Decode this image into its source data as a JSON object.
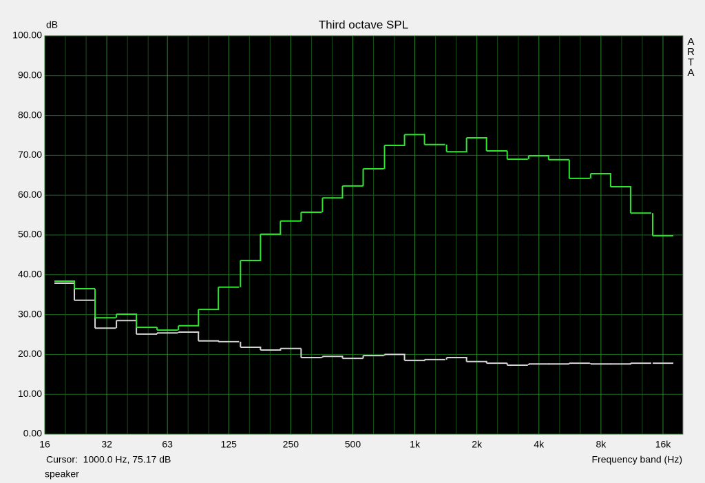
{
  "chart_data": {
    "type": "step",
    "title": "Third octave SPL",
    "y_label": "dB",
    "x_label": "Frequency band (Hz)",
    "cursor_text": "Cursor:  1000.0 Hz, 75.17 dB",
    "annotation": "speaker",
    "watermark": "ARTA",
    "log_x": true,
    "grid": true,
    "x": [
      20,
      25,
      31.5,
      40,
      50,
      63,
      80,
      100,
      125,
      160,
      200,
      250,
      315,
      400,
      500,
      630,
      800,
      1000,
      1250,
      1600,
      2000,
      2500,
      3150,
      4000,
      5000,
      6300,
      8000,
      10000,
      12500,
      16000
    ],
    "series": [
      {
        "color": "#2ee62e",
        "values": [
          38.4,
          36.5,
          29.2,
          30.1,
          26.8,
          26.1,
          27.2,
          31.3,
          36.9,
          43.6,
          50.2,
          53.5,
          55.7,
          59.3,
          62.3,
          66.6,
          72.5,
          75.2,
          72.7,
          70.9,
          74.4,
          71.1,
          69.0,
          69.9,
          68.9,
          64.2,
          65.4,
          62.1,
          55.5,
          49.8
        ]
      },
      {
        "color": "#d4d4d4",
        "values": [
          37.9,
          33.6,
          26.6,
          28.5,
          25.1,
          25.4,
          25.6,
          23.4,
          23.2,
          21.8,
          21.1,
          21.5,
          19.2,
          19.5,
          19.0,
          19.7,
          20.0,
          18.5,
          18.7,
          19.2,
          18.2,
          17.8,
          17.3,
          17.6,
          17.6,
          17.8,
          17.6,
          17.6,
          17.8,
          17.8
        ]
      }
    ],
    "xlim": [
      16,
      20000
    ],
    "xticks": [
      16,
      32,
      63,
      125,
      250,
      500,
      {
        "value": 1000,
        "label": "1k"
      },
      {
        "value": 2000,
        "label": "2k"
      },
      {
        "value": 4000,
        "label": "4k"
      },
      {
        "value": 8000,
        "label": "8k"
      },
      {
        "value": 16000,
        "label": "16k"
      }
    ],
    "ylim": [
      0,
      100
    ],
    "yticks": [
      {
        "value": 0,
        "label": "0.00"
      },
      {
        "value": 10,
        "label": "10.00"
      },
      {
        "value": 20,
        "label": "20.00"
      },
      {
        "value": 30,
        "label": "30.00"
      },
      {
        "value": 40,
        "label": "40.00"
      },
      {
        "value": 50,
        "label": "50.00"
      },
      {
        "value": 60,
        "label": "60.00"
      },
      {
        "value": 70,
        "label": "70.00"
      },
      {
        "value": 80,
        "label": "80.00"
      },
      {
        "value": 90,
        "label": "90.00"
      },
      {
        "value": 100,
        "label": "100.00"
      }
    ]
  }
}
